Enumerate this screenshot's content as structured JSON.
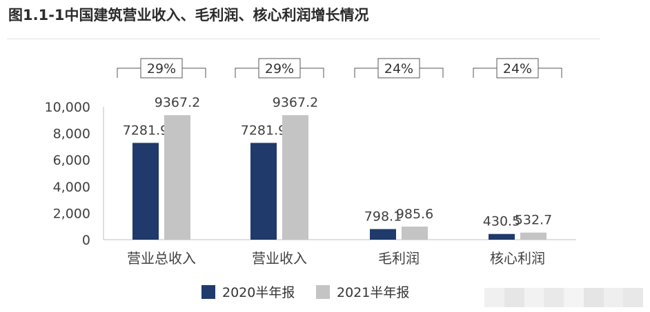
{
  "title": "图1.1-1中国建筑营业收入、毛利润、核心利润增长情况",
  "chart_data": {
    "type": "bar",
    "categories": [
      "营业总收入",
      "营业收入",
      "毛利润",
      "核心利润"
    ],
    "series": [
      {
        "name": "2020半年报",
        "values": [
          7281.9,
          7281.9,
          798.1,
          430.5
        ],
        "labels": [
          "7281.9",
          "7281.9",
          "798.1",
          "430.5"
        ],
        "color": "#1f3a6b"
      },
      {
        "name": "2021半年报",
        "values": [
          9367.2,
          9367.2,
          985.6,
          532.7
        ],
        "labels": [
          "9367.2",
          "9367.2",
          "985.6",
          "532.7"
        ],
        "color": "#c4c4c4"
      }
    ],
    "growth_labels": [
      "29%",
      "29%",
      "24%",
      "24%"
    ],
    "yticks": [
      "0",
      "2,000",
      "4,000",
      "6,000",
      "8,000",
      "10,000"
    ],
    "ylim": [
      0,
      10000
    ],
    "legend_position": "bottom",
    "grid": false
  }
}
